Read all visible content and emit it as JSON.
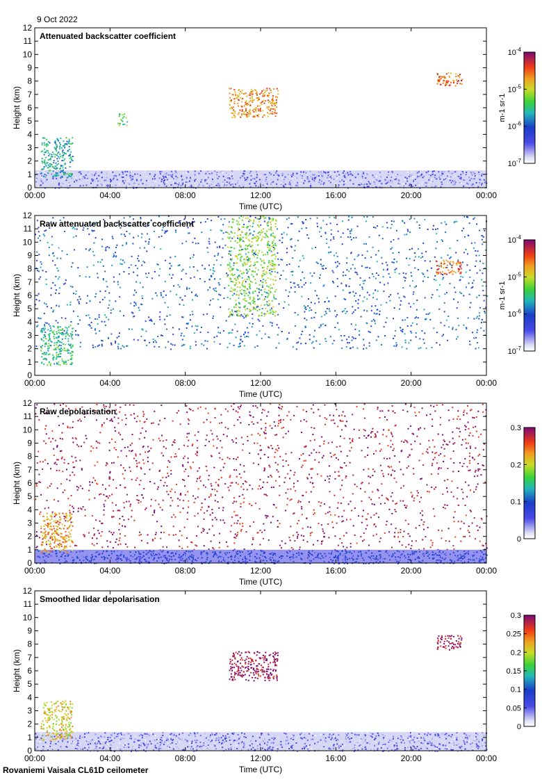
{
  "header": {
    "date": "9 Oct 2022"
  },
  "footer": {
    "site_instrument": "Rovaniemi Vaisala CL61D ceilometer"
  },
  "chart_data": [
    {
      "type": "heatmap",
      "title": "Attenuated backscatter coefficient",
      "xlabel": "Time (UTC)",
      "ylabel": "Height (km)",
      "xlim": [
        0,
        24
      ],
      "ylim": [
        0,
        12
      ],
      "x_ticks": [
        "00:00",
        "04:00",
        "08:00",
        "12:00",
        "16:00",
        "20:00",
        "00:00"
      ],
      "y_ticks": [
        "0",
        "1",
        "2",
        "3",
        "4",
        "5",
        "6",
        "7",
        "8",
        "9",
        "10",
        "11",
        "12"
      ],
      "colorbar": {
        "scale": "log",
        "range": [
          1e-07,
          0.0001
        ],
        "labels": [
          "10-7",
          "10-6",
          "10-5",
          "10-4"
        ],
        "unit": "m-1 sr-1",
        "colormap": "chiljet"
      },
      "features": [
        {
          "kind": "boundary_layer",
          "t_start": 0,
          "t_end": 24,
          "h_bottom": 0,
          "h_top": 1.3,
          "level": 0.12
        },
        {
          "kind": "cloud",
          "t_start": 0.3,
          "t_end": 2.0,
          "h_bottom": 0.8,
          "h_top": 3.8,
          "level": 0.45
        },
        {
          "kind": "cloud",
          "t_start": 4.4,
          "t_end": 4.9,
          "h_bottom": 4.7,
          "h_top": 5.6,
          "level": 0.55
        },
        {
          "kind": "cloud",
          "t_start": 10.3,
          "t_end": 12.9,
          "h_bottom": 5.3,
          "h_top": 7.5,
          "level": 0.78
        },
        {
          "kind": "cloud",
          "t_start": 21.3,
          "t_end": 22.7,
          "h_bottom": 7.6,
          "h_top": 8.7,
          "level": 0.82
        }
      ]
    },
    {
      "type": "heatmap",
      "title": "Raw attenuated backscatter coefficient",
      "xlabel": "Time (UTC)",
      "ylabel": "Height (km)",
      "xlim": [
        0,
        24
      ],
      "ylim": [
        0,
        12
      ],
      "x_ticks": [
        "00:00",
        "04:00",
        "08:00",
        "12:00",
        "16:00",
        "20:00",
        "00:00"
      ],
      "y_ticks": [
        "0",
        "1",
        "2",
        "3",
        "4",
        "5",
        "6",
        "7",
        "8",
        "9",
        "10",
        "11",
        "12"
      ],
      "colorbar": {
        "scale": "log",
        "range": [
          1e-07,
          0.0001
        ],
        "labels": [
          "10-7",
          "10-6",
          "10-5",
          "10-4"
        ],
        "unit": "m-1 sr-1",
        "colormap": "chiljet"
      },
      "features": [
        {
          "kind": "noise_field",
          "t_start": 0,
          "t_end": 24,
          "h_bottom": 2.0,
          "h_top": 12,
          "level": 0.35
        },
        {
          "kind": "cloud",
          "t_start": 0.3,
          "t_end": 2.0,
          "h_bottom": 0.8,
          "h_top": 3.8,
          "level": 0.5
        },
        {
          "kind": "noise_plume",
          "t_start": 10.2,
          "t_end": 12.8,
          "h_bottom": 4.5,
          "h_top": 12,
          "level": 0.6
        },
        {
          "kind": "cloud",
          "t_start": 21.3,
          "t_end": 22.7,
          "h_bottom": 7.6,
          "h_top": 8.7,
          "level": 0.82
        }
      ]
    },
    {
      "type": "heatmap",
      "title": "Raw depolarisation",
      "xlabel": "Time (UTC)",
      "ylabel": "Height (km)",
      "xlim": [
        0,
        24
      ],
      "ylim": [
        0,
        12
      ],
      "x_ticks": [
        "00:00",
        "04:00",
        "08:00",
        "12:00",
        "16:00",
        "20:00",
        "00:00"
      ],
      "y_ticks": [
        "0",
        "1",
        "2",
        "3",
        "4",
        "5",
        "6",
        "7",
        "8",
        "9",
        "10",
        "11",
        "12"
      ],
      "colorbar": {
        "scale": "linear",
        "range": [
          0,
          0.3
        ],
        "labels": [
          "0",
          "0.1",
          "0.2",
          "0.3"
        ],
        "unit": "",
        "colormap": "chiljet"
      },
      "features": [
        {
          "kind": "noise_field",
          "t_start": 0,
          "t_end": 24,
          "h_bottom": 1.0,
          "h_top": 12,
          "level": 0.95
        },
        {
          "kind": "boundary_layer",
          "t_start": 0,
          "t_end": 24,
          "h_bottom": 0,
          "h_top": 1.0,
          "level": 0.25
        },
        {
          "kind": "cloud",
          "t_start": 0.3,
          "t_end": 2.0,
          "h_bottom": 0.8,
          "h_top": 3.8,
          "level": 0.75
        }
      ]
    },
    {
      "type": "heatmap",
      "title": "Smoothed lidar depolarisation",
      "xlabel": "Time (UTC)",
      "ylabel": "Height (km)",
      "xlim": [
        0,
        24
      ],
      "ylim": [
        0,
        12
      ],
      "x_ticks": [
        "00:00",
        "04:00",
        "08:00",
        "12:00",
        "16:00",
        "20:00",
        "00:00"
      ],
      "y_ticks": [
        "0",
        "1",
        "2",
        "3",
        "4",
        "5",
        "6",
        "7",
        "8",
        "9",
        "10",
        "11",
        "12"
      ],
      "colorbar": {
        "scale": "linear",
        "range": [
          0,
          0.3
        ],
        "labels": [
          "0",
          "0.05",
          "0.1",
          "0.15",
          "0.2",
          "0.25",
          "0.3"
        ],
        "unit": "",
        "colormap": "chiljet"
      },
      "features": [
        {
          "kind": "boundary_layer",
          "t_start": 0,
          "t_end": 24,
          "h_bottom": 0,
          "h_top": 1.4,
          "level": 0.12
        },
        {
          "kind": "cloud",
          "t_start": 0.3,
          "t_end": 2.0,
          "h_bottom": 0.8,
          "h_top": 3.8,
          "level": 0.7
        },
        {
          "kind": "cloud",
          "t_start": 10.3,
          "t_end": 12.9,
          "h_bottom": 5.3,
          "h_top": 7.5,
          "level": 0.97
        },
        {
          "kind": "cloud",
          "t_start": 21.3,
          "t_end": 22.7,
          "h_bottom": 7.6,
          "h_top": 8.7,
          "level": 0.97
        }
      ]
    }
  ]
}
